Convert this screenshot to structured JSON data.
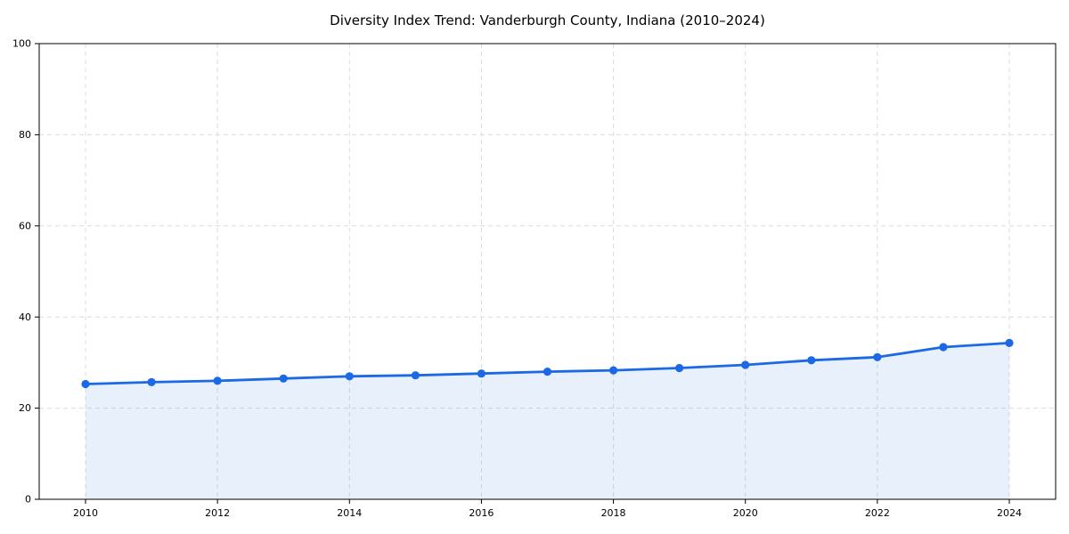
{
  "figure": {
    "background": "#ffffff"
  },
  "chart_data": {
    "type": "line",
    "title": "Diversity Index Trend: Vanderburgh County, Indiana (2010–2024)",
    "xlabel": "",
    "ylabel": "",
    "x": [
      2010,
      2011,
      2012,
      2013,
      2014,
      2015,
      2016,
      2017,
      2018,
      2019,
      2020,
      2021,
      2022,
      2023,
      2024
    ],
    "series": [
      {
        "name": "Diversity Index",
        "values": [
          25.3,
          25.7,
          26.0,
          26.5,
          27.0,
          27.2,
          27.6,
          28.0,
          28.3,
          28.8,
          29.5,
          30.5,
          31.2,
          33.4,
          34.3
        ]
      }
    ],
    "ylim": [
      0,
      100
    ],
    "yticks": [
      0,
      20,
      40,
      60,
      80,
      100
    ],
    "xticks": [
      2010,
      2012,
      2014,
      2016,
      2018,
      2020,
      2022,
      2024
    ],
    "grid": "dashed",
    "legend_position": "none",
    "marker": "circle",
    "area_fill": true,
    "colors": {
      "line": "#1b69e4",
      "marker": "#1b69e4",
      "fill": "rgba(27, 105, 228, 0.10)",
      "grid": "#dcdcdc",
      "spine": "#000000",
      "tick_label": "#000000",
      "title": "#000000"
    }
  }
}
